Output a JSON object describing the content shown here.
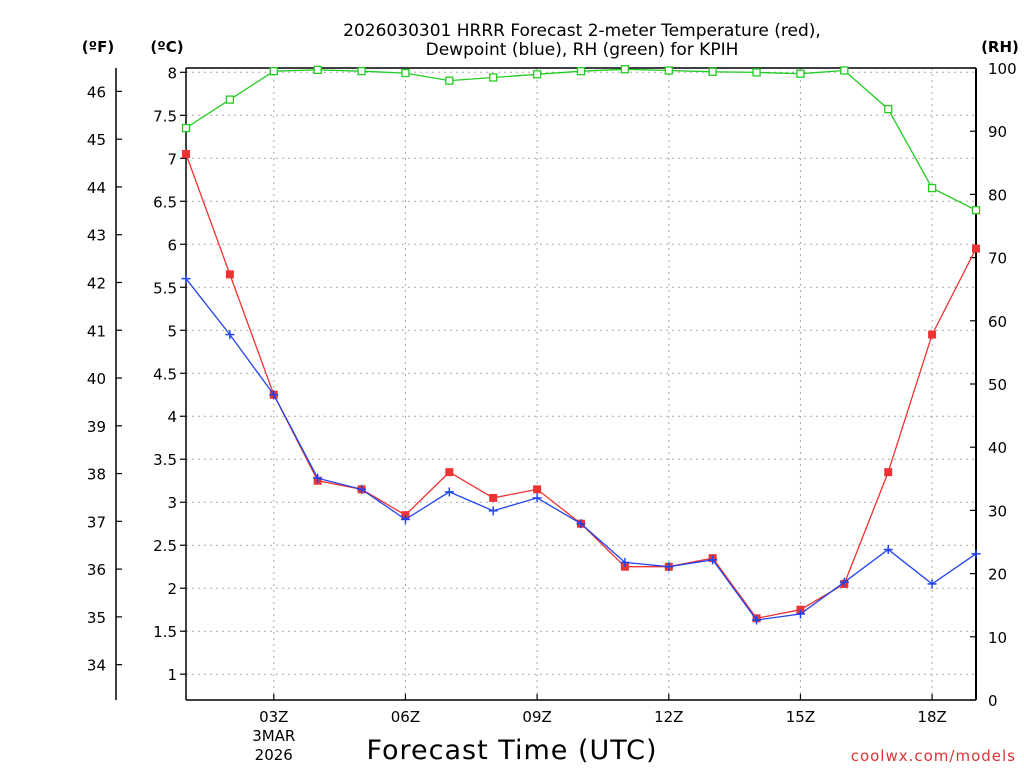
{
  "chart_data": {
    "type": "line",
    "title_lines": [
      "2026030301 HRRR Forecast 2-meter Temperature (red),",
      "Dewpoint (blue), RH (green) for KPIH"
    ],
    "xlabel": "Forecast Time (UTC)",
    "credit": "coolwx.com/models",
    "axis_units": {
      "fahrenheit": "(ºF)",
      "celsius": "(ºC)",
      "rh": "(RH)"
    },
    "x_hours": [
      1,
      2,
      3,
      4,
      5,
      6,
      7,
      8,
      9,
      10,
      11,
      12,
      13,
      14,
      15,
      16,
      17,
      18,
      19
    ],
    "xlim": [
      1,
      19
    ],
    "x_ticks": [
      {
        "hour": 3,
        "label": "03Z",
        "sublabels": [
          "3MAR",
          "2026"
        ]
      },
      {
        "hour": 6,
        "label": "06Z"
      },
      {
        "hour": 9,
        "label": "09Z"
      },
      {
        "hour": 12,
        "label": "12Z"
      },
      {
        "hour": 15,
        "label": "15Z"
      },
      {
        "hour": 18,
        "label": "18Z"
      }
    ],
    "celsius_axis": {
      "ylim": [
        0.7,
        8.05
      ],
      "ticks": [
        1,
        1.5,
        2,
        2.5,
        3,
        3.5,
        4,
        4.5,
        5,
        5.5,
        6,
        6.5,
        7,
        7.5,
        8
      ],
      "tick_labels": [
        "1",
        "1.5",
        "2",
        "2.5",
        "3",
        "3.5",
        "4",
        "4.5",
        "5",
        "5.5",
        "6",
        "6.5",
        "7",
        "7.5",
        "8"
      ]
    },
    "fahrenheit_axis": {
      "ticks": [
        34,
        35,
        36,
        37,
        38,
        39,
        40,
        41,
        42,
        43,
        44,
        45,
        46
      ],
      "tick_labels": [
        "34",
        "35",
        "36",
        "37",
        "38",
        "39",
        "40",
        "41",
        "42",
        "43",
        "44",
        "45",
        "46"
      ]
    },
    "rh_axis": {
      "ylim": [
        0,
        100
      ],
      "ticks": [
        0,
        10,
        20,
        30,
        40,
        50,
        60,
        70,
        80,
        90,
        100
      ],
      "tick_labels": [
        "0",
        "10",
        "20",
        "30",
        "40",
        "50",
        "60",
        "70",
        "80",
        "90",
        "100"
      ]
    },
    "grid": true,
    "series": [
      {
        "name": "Temperature",
        "color": "#ee3333",
        "marker": "filled-square",
        "axis": "celsius",
        "values": [
          7.05,
          5.65,
          4.25,
          3.25,
          3.15,
          2.85,
          3.35,
          3.05,
          3.15,
          2.75,
          2.25,
          2.25,
          2.35,
          1.65,
          1.75,
          2.05,
          3.35,
          4.95,
          5.95
        ]
      },
      {
        "name": "Dewpoint",
        "color": "#2244ee",
        "marker": "plus",
        "axis": "celsius",
        "values": [
          5.6,
          4.95,
          4.25,
          3.28,
          3.15,
          2.8,
          3.12,
          2.9,
          3.05,
          2.75,
          2.3,
          2.25,
          2.33,
          1.63,
          1.7,
          2.07,
          2.45,
          2.05,
          2.4
        ]
      },
      {
        "name": "RH",
        "color": "#22cc22",
        "marker": "open-square",
        "axis": "rh",
        "values": [
          90.5,
          95,
          99.5,
          99.7,
          99.5,
          99.2,
          98,
          98.5,
          99,
          99.5,
          99.8,
          99.6,
          99.4,
          99.3,
          99.1,
          99.6,
          93.5,
          81,
          77.5
        ]
      }
    ]
  }
}
